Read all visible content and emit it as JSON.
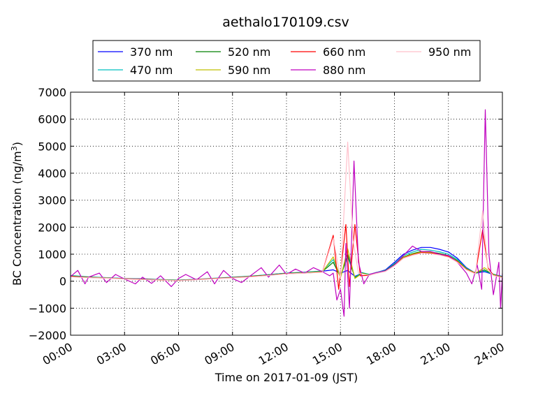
{
  "chart_data": {
    "type": "line",
    "title": "aethalo170109.csv",
    "xlabel": "Time on 2017-01-09 (JST)",
    "ylabel_main": "BC Concentration (ng/m",
    "ylabel_sup": "3",
    "ylabel_end": ")",
    "xlim": [
      0,
      24
    ],
    "ylim": [
      -2000,
      7000
    ],
    "x_ticks": [
      0,
      3,
      6,
      9,
      12,
      15,
      18,
      21,
      24
    ],
    "x_tick_labels": [
      "00:00",
      "03:00",
      "06:00",
      "09:00",
      "12:00",
      "15:00",
      "18:00",
      "21:00",
      "24:00"
    ],
    "y_ticks": [
      -2000,
      -1000,
      0,
      1000,
      2000,
      3000,
      4000,
      5000,
      6000,
      7000
    ],
    "y_tick_labels": [
      "−2000",
      "−1000",
      "0",
      "1000",
      "2000",
      "3000",
      "4000",
      "5000",
      "6000",
      "7000"
    ],
    "grid": true,
    "legend_position": "top-center",
    "x_unit": "hours",
    "series": [
      {
        "name": "370 nm",
        "color": "#0000ff",
        "points": [
          [
            0,
            200
          ],
          [
            1,
            150
          ],
          [
            2,
            130
          ],
          [
            3,
            100
          ],
          [
            4,
            90
          ],
          [
            5,
            60
          ],
          [
            6,
            40
          ],
          [
            7,
            70
          ],
          [
            8,
            100
          ],
          [
            9,
            140
          ],
          [
            10,
            180
          ],
          [
            11,
            240
          ],
          [
            12,
            300
          ],
          [
            13,
            330
          ],
          [
            14,
            370
          ],
          [
            14.6,
            420
          ],
          [
            15.0,
            300
          ],
          [
            15.4,
            400
          ],
          [
            15.8,
            180
          ],
          [
            16.2,
            300
          ],
          [
            16.6,
            250
          ],
          [
            17,
            320
          ],
          [
            17.5,
            420
          ],
          [
            18,
            700
          ],
          [
            18.5,
            1000
          ],
          [
            19,
            1150
          ],
          [
            19.5,
            1250
          ],
          [
            20,
            1250
          ],
          [
            20.5,
            1180
          ],
          [
            21,
            1080
          ],
          [
            21.5,
            850
          ],
          [
            22,
            500
          ],
          [
            22.5,
            300
          ],
          [
            23,
            350
          ],
          [
            23.5,
            250
          ],
          [
            24,
            180
          ]
        ]
      },
      {
        "name": "470 nm",
        "color": "#00c0bf",
        "points": [
          [
            0,
            210
          ],
          [
            1,
            160
          ],
          [
            2,
            130
          ],
          [
            3,
            100
          ],
          [
            4,
            80
          ],
          [
            5,
            60
          ],
          [
            6,
            40
          ],
          [
            7,
            70
          ],
          [
            8,
            110
          ],
          [
            9,
            150
          ],
          [
            10,
            190
          ],
          [
            11,
            240
          ],
          [
            12,
            300
          ],
          [
            13,
            330
          ],
          [
            14,
            380
          ],
          [
            14.6,
            800
          ],
          [
            15.0,
            200
          ],
          [
            15.4,
            900
          ],
          [
            15.8,
            150
          ],
          [
            16.2,
            320
          ],
          [
            16.6,
            250
          ],
          [
            17,
            330
          ],
          [
            17.5,
            400
          ],
          [
            18,
            650
          ],
          [
            18.5,
            950
          ],
          [
            19,
            1080
          ],
          [
            19.5,
            1180
          ],
          [
            20,
            1150
          ],
          [
            20.5,
            1090
          ],
          [
            21,
            1000
          ],
          [
            21.5,
            800
          ],
          [
            22,
            480
          ],
          [
            22.5,
            300
          ],
          [
            23,
            380
          ],
          [
            23.5,
            260
          ],
          [
            24,
            170
          ]
        ]
      },
      {
        "name": "520 nm",
        "color": "#008000",
        "points": [
          [
            0,
            190
          ],
          [
            1,
            150
          ],
          [
            2,
            120
          ],
          [
            3,
            90
          ],
          [
            4,
            80
          ],
          [
            5,
            50
          ],
          [
            6,
            30
          ],
          [
            7,
            60
          ],
          [
            8,
            100
          ],
          [
            9,
            140
          ],
          [
            10,
            180
          ],
          [
            11,
            230
          ],
          [
            12,
            290
          ],
          [
            13,
            320
          ],
          [
            14,
            360
          ],
          [
            14.6,
            700
          ],
          [
            15.0,
            150
          ],
          [
            15.4,
            1000
          ],
          [
            15.8,
            120
          ],
          [
            16.2,
            300
          ],
          [
            16.6,
            240
          ],
          [
            17,
            310
          ],
          [
            17.5,
            390
          ],
          [
            18,
            620
          ],
          [
            18.5,
            900
          ],
          [
            19,
            1020
          ],
          [
            19.5,
            1100
          ],
          [
            20,
            1080
          ],
          [
            20.5,
            1030
          ],
          [
            21,
            950
          ],
          [
            21.5,
            760
          ],
          [
            22,
            460
          ],
          [
            22.5,
            300
          ],
          [
            23,
            420
          ],
          [
            23.5,
            250
          ],
          [
            24,
            160
          ]
        ]
      },
      {
        "name": "590 nm",
        "color": "#bfbf00",
        "points": [
          [
            0,
            180
          ],
          [
            1,
            140
          ],
          [
            2,
            120
          ],
          [
            3,
            90
          ],
          [
            4,
            70
          ],
          [
            5,
            50
          ],
          [
            6,
            30
          ],
          [
            7,
            60
          ],
          [
            8,
            100
          ],
          [
            9,
            130
          ],
          [
            10,
            170
          ],
          [
            11,
            220
          ],
          [
            12,
            280
          ],
          [
            13,
            310
          ],
          [
            14,
            350
          ],
          [
            14.6,
            900
          ],
          [
            15.0,
            120
          ],
          [
            15.4,
            1200
          ],
          [
            15.8,
            100
          ],
          [
            16.2,
            290
          ],
          [
            16.6,
            230
          ],
          [
            17,
            300
          ],
          [
            17.5,
            380
          ],
          [
            18,
            600
          ],
          [
            18.5,
            880
          ],
          [
            19,
            1000
          ],
          [
            19.5,
            1080
          ],
          [
            20,
            1060
          ],
          [
            20.5,
            1010
          ],
          [
            21,
            930
          ],
          [
            21.5,
            740
          ],
          [
            22,
            450
          ],
          [
            22.5,
            300
          ],
          [
            23,
            500
          ],
          [
            23.5,
            240
          ],
          [
            24,
            150
          ]
        ]
      },
      {
        "name": "660 nm",
        "color": "#ff0000",
        "points": [
          [
            0,
            180
          ],
          [
            1,
            140
          ],
          [
            2,
            110
          ],
          [
            3,
            90
          ],
          [
            4,
            70
          ],
          [
            5,
            40
          ],
          [
            6,
            20
          ],
          [
            7,
            60
          ],
          [
            8,
            100
          ],
          [
            9,
            130
          ],
          [
            10,
            170
          ],
          [
            11,
            220
          ],
          [
            12,
            280
          ],
          [
            13,
            300
          ],
          [
            14,
            340
          ],
          [
            14.6,
            1700
          ],
          [
            14.9,
            -300
          ],
          [
            15.3,
            2100
          ],
          [
            15.5,
            -200
          ],
          [
            15.8,
            2100
          ],
          [
            16.1,
            200
          ],
          [
            16.6,
            220
          ],
          [
            17,
            300
          ],
          [
            17.5,
            370
          ],
          [
            18,
            580
          ],
          [
            18.5,
            860
          ],
          [
            19,
            980
          ],
          [
            19.5,
            1060
          ],
          [
            20,
            1040
          ],
          [
            20.5,
            990
          ],
          [
            21,
            910
          ],
          [
            21.5,
            720
          ],
          [
            22,
            430
          ],
          [
            22.5,
            280
          ],
          [
            22.9,
            1900
          ],
          [
            23.2,
            500
          ],
          [
            23.5,
            220
          ],
          [
            24,
            140
          ]
        ]
      },
      {
        "name": "880 nm",
        "color": "#bf00bf",
        "points": [
          [
            0,
            170
          ],
          [
            0.4,
            400
          ],
          [
            0.8,
            -100
          ],
          [
            1,
            150
          ],
          [
            1.6,
            300
          ],
          [
            2,
            -50
          ],
          [
            2.5,
            250
          ],
          [
            3,
            80
          ],
          [
            3.6,
            -100
          ],
          [
            4,
            150
          ],
          [
            4.5,
            -80
          ],
          [
            5,
            200
          ],
          [
            5.6,
            -200
          ],
          [
            6,
            100
          ],
          [
            6.4,
            250
          ],
          [
            7,
            50
          ],
          [
            7.6,
            350
          ],
          [
            8,
            -100
          ],
          [
            8.5,
            400
          ],
          [
            9,
            100
          ],
          [
            9.5,
            -50
          ],
          [
            10,
            200
          ],
          [
            10.6,
            500
          ],
          [
            11,
            150
          ],
          [
            11.6,
            600
          ],
          [
            12,
            250
          ],
          [
            12.5,
            450
          ],
          [
            13,
            300
          ],
          [
            13.5,
            500
          ],
          [
            14,
            350
          ],
          [
            14.4,
            200
          ],
          [
            14.6,
            300
          ],
          [
            14.8,
            -700
          ],
          [
            15.0,
            -300
          ],
          [
            15.2,
            -1300
          ],
          [
            15.3,
            1400
          ],
          [
            15.5,
            -1000
          ],
          [
            15.75,
            4450
          ],
          [
            16.0,
            700
          ],
          [
            16.3,
            -100
          ],
          [
            16.6,
            250
          ],
          [
            17,
            320
          ],
          [
            17.5,
            380
          ],
          [
            18,
            600
          ],
          [
            18.5,
            950
          ],
          [
            19,
            1300
          ],
          [
            19.5,
            1100
          ],
          [
            20,
            1100
          ],
          [
            20.5,
            1000
          ],
          [
            21,
            950
          ],
          [
            21.5,
            700
          ],
          [
            22,
            300
          ],
          [
            22.3,
            -100
          ],
          [
            22.6,
            600
          ],
          [
            22.85,
            -300
          ],
          [
            23.05,
            6350
          ],
          [
            23.25,
            1000
          ],
          [
            23.5,
            -500
          ],
          [
            23.8,
            700
          ],
          [
            23.9,
            -1000
          ],
          [
            24,
            300
          ]
        ]
      },
      {
        "name": "950 nm",
        "color": "#ffc0cb",
        "points": [
          [
            0,
            160
          ],
          [
            1,
            130
          ],
          [
            2,
            110
          ],
          [
            3,
            80
          ],
          [
            4,
            60
          ],
          [
            5,
            40
          ],
          [
            6,
            20
          ],
          [
            7,
            50
          ],
          [
            8,
            90
          ],
          [
            9,
            120
          ],
          [
            10,
            160
          ],
          [
            11,
            210
          ],
          [
            12,
            270
          ],
          [
            13,
            300
          ],
          [
            14,
            330
          ],
          [
            14.6,
            1600
          ],
          [
            15.0,
            100
          ],
          [
            15.4,
            5150
          ],
          [
            15.7,
            1500
          ],
          [
            16.0,
            300
          ],
          [
            16.6,
            220
          ],
          [
            17,
            290
          ],
          [
            17.5,
            360
          ],
          [
            18,
            570
          ],
          [
            18.5,
            850
          ],
          [
            19,
            960
          ],
          [
            19.5,
            1040
          ],
          [
            20,
            1020
          ],
          [
            20.5,
            970
          ],
          [
            21,
            890
          ],
          [
            21.5,
            700
          ],
          [
            22,
            420
          ],
          [
            22.5,
            270
          ],
          [
            22.9,
            2600
          ],
          [
            23.2,
            400
          ],
          [
            23.5,
            210
          ],
          [
            24,
            130
          ]
        ]
      }
    ]
  }
}
